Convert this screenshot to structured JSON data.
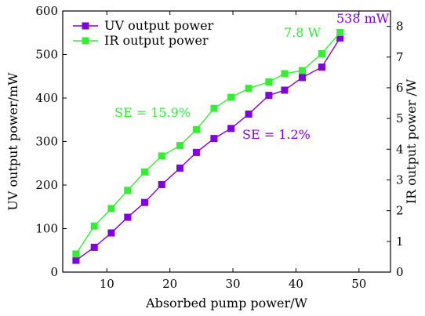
{
  "chart_data": {
    "type": "line",
    "xlabel": "Absorbed pump power/W",
    "ylabel_left": "UV output power/mW",
    "ylabel_right": "IR output power /W",
    "xlim": [
      3,
      55
    ],
    "ylim_left": [
      0,
      600
    ],
    "ylim_right": [
      0,
      8.5
    ],
    "x_ticks": [
      10,
      20,
      30,
      40,
      50
    ],
    "y_ticks_left": [
      0,
      100,
      200,
      300,
      400,
      500,
      600
    ],
    "y_ticks_right": [
      0,
      1,
      2,
      3,
      4,
      5,
      6,
      7,
      8
    ],
    "legend_position": "top-left",
    "series": [
      {
        "name": "UV output power",
        "axis": "left",
        "color": "#8000e0",
        "marker": "square",
        "x": [
          5.1,
          8.0,
          10.7,
          13.3,
          16.0,
          18.7,
          21.6,
          24.2,
          27.0,
          29.7,
          32.5,
          35.7,
          38.2,
          41.0,
          44.1,
          47.0
        ],
        "values": [
          27,
          57,
          90,
          126,
          160,
          201,
          239,
          275,
          307,
          330,
          363,
          406,
          418,
          447,
          471,
          538
        ]
      },
      {
        "name": "IR output power",
        "axis": "right",
        "color": "#33ee33",
        "marker": "square",
        "x": [
          5.1,
          8.0,
          10.7,
          13.3,
          16.0,
          18.7,
          21.6,
          24.2,
          27.0,
          29.7,
          32.5,
          35.7,
          38.2,
          41.0,
          44.1,
          47.0
        ],
        "values": [
          0.59,
          1.5,
          2.07,
          2.66,
          3.26,
          3.78,
          4.12,
          4.64,
          5.33,
          5.69,
          5.98,
          6.19,
          6.46,
          6.56,
          7.11,
          7.8
        ]
      }
    ],
    "annotations": [
      {
        "text": "SE = 15.9%",
        "color": "#33ee33"
      },
      {
        "text": "SE = 1.2%",
        "color": "#8000e0"
      },
      {
        "text": "7.8 W",
        "color": "#33ee33"
      },
      {
        "text": "538 mW",
        "color": "#8000e0"
      }
    ]
  }
}
